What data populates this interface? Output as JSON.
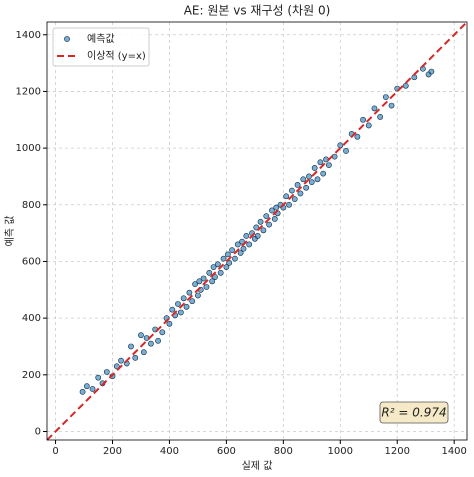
{
  "chart_data": {
    "type": "scatter",
    "title": "AE: 원본 vs 재구성 (차원 0)",
    "x_label": "실제 값",
    "y_label": "예측 값",
    "xlim": [
      -30,
      1445
    ],
    "ylim": [
      -30,
      1445
    ],
    "xticks": [
      0,
      200,
      400,
      600,
      800,
      1000,
      1200,
      1400
    ],
    "yticks": [
      0,
      200,
      400,
      600,
      800,
      1000,
      1200,
      1400
    ],
    "grid": true,
    "legend": "upper left",
    "annotation": "R² = 0.974",
    "series": [
      {
        "name": "예측값",
        "color": "#1f77b4",
        "type": "scatter",
        "x": [
          95,
          110,
          130,
          150,
          165,
          180,
          200,
          215,
          230,
          250,
          265,
          280,
          300,
          310,
          320,
          335,
          350,
          360,
          375,
          390,
          400,
          410,
          420,
          430,
          440,
          450,
          460,
          470,
          480,
          490,
          500,
          505,
          510,
          520,
          530,
          540,
          550,
          555,
          560,
          570,
          580,
          590,
          600,
          605,
          610,
          620,
          630,
          640,
          650,
          655,
          660,
          670,
          680,
          690,
          700,
          705,
          710,
          720,
          730,
          740,
          750,
          760,
          770,
          775,
          780,
          790,
          800,
          810,
          820,
          830,
          840,
          850,
          860,
          870,
          880,
          890,
          900,
          910,
          920,
          930,
          940,
          950,
          960,
          980,
          1000,
          1020,
          1040,
          1060,
          1080,
          1100,
          1120,
          1140,
          1160,
          1180,
          1200,
          1230,
          1260,
          1290,
          1310,
          1320
        ],
        "values": [
          140,
          160,
          150,
          190,
          170,
          210,
          195,
          230,
          250,
          240,
          300,
          260,
          340,
          280,
          330,
          310,
          360,
          320,
          350,
          400,
          380,
          430,
          410,
          450,
          420,
          470,
          440,
          490,
          460,
          520,
          480,
          530,
          500,
          540,
          510,
          560,
          530,
          580,
          545,
          590,
          560,
          610,
          580,
          625,
          595,
          640,
          610,
          660,
          630,
          670,
          645,
          690,
          660,
          700,
          680,
          720,
          690,
          740,
          710,
          760,
          730,
          780,
          750,
          790,
          770,
          800,
          790,
          830,
          800,
          850,
          820,
          870,
          840,
          890,
          860,
          900,
          880,
          930,
          890,
          950,
          910,
          960,
          940,
          970,
          1010,
          990,
          1050,
          1040,
          1100,
          1080,
          1140,
          1110,
          1180,
          1150,
          1210,
          1220,
          1250,
          1280,
          1260,
          1270
        ]
      },
      {
        "name": "이상적 (y=x)",
        "color": "#d62728",
        "type": "line",
        "x": [
          -30,
          1445
        ],
        "values": [
          -30,
          1445
        ]
      }
    ]
  }
}
